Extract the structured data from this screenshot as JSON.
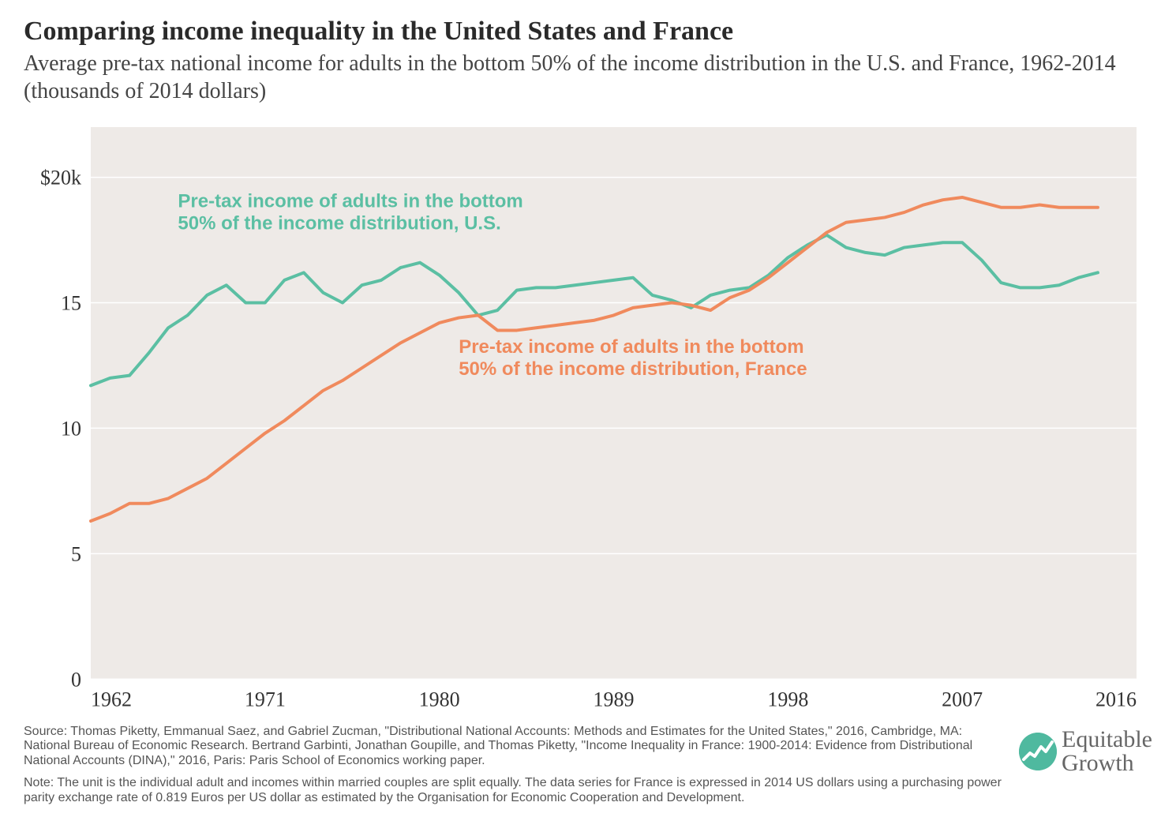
{
  "header": {
    "title": "Comparing income inequality in the United States and France",
    "subtitle": "Average pre-tax national income for adults in the bottom 50% of the income distribution in the U.S. and France, 1962-2014 (thousands of 2014 dollars)"
  },
  "chart": {
    "type": "line",
    "background_color": "#eeeae7",
    "page_background": "#ffffff",
    "grid_color": "#ffffff",
    "grid_line_width": 1.5,
    "xlim": [
      1962,
      2016
    ],
    "ylim": [
      0,
      22
    ],
    "xticks": [
      1962,
      1971,
      1980,
      1989,
      1998,
      2007,
      2016
    ],
    "yticks": [
      0,
      5,
      10,
      15,
      20
    ],
    "ytick_labels": [
      "0",
      "5",
      "10",
      "15",
      "$20k"
    ],
    "axis_font_size": 26,
    "axis_font_color": "#333333",
    "line_width": 4,
    "series": [
      {
        "id": "us",
        "label_line1": "Pre-tax income of adults in the bottom",
        "label_line2": "50% of the income distribution, U.S.",
        "color": "#5bbfa3",
        "label_x": 1966.5,
        "label_y_top": 18.8,
        "data": [
          [
            1962,
            11.7
          ],
          [
            1963,
            12.0
          ],
          [
            1964,
            12.1
          ],
          [
            1965,
            13.0
          ],
          [
            1966,
            14.0
          ],
          [
            1967,
            14.5
          ],
          [
            1968,
            15.3
          ],
          [
            1969,
            15.7
          ],
          [
            1970,
            15.0
          ],
          [
            1971,
            15.0
          ],
          [
            1972,
            15.9
          ],
          [
            1973,
            16.2
          ],
          [
            1974,
            15.4
          ],
          [
            1975,
            15.0
          ],
          [
            1976,
            15.7
          ],
          [
            1977,
            15.9
          ],
          [
            1978,
            16.4
          ],
          [
            1979,
            16.6
          ],
          [
            1980,
            16.1
          ],
          [
            1981,
            15.4
          ],
          [
            1982,
            14.5
          ],
          [
            1983,
            14.7
          ],
          [
            1984,
            15.5
          ],
          [
            1985,
            15.6
          ],
          [
            1986,
            15.6
          ],
          [
            1987,
            15.7
          ],
          [
            1988,
            15.8
          ],
          [
            1989,
            15.9
          ],
          [
            1990,
            16.0
          ],
          [
            1991,
            15.3
          ],
          [
            1992,
            15.1
          ],
          [
            1993,
            14.8
          ],
          [
            1994,
            15.3
          ],
          [
            1995,
            15.5
          ],
          [
            1996,
            15.6
          ],
          [
            1997,
            16.1
          ],
          [
            1998,
            16.8
          ],
          [
            1999,
            17.3
          ],
          [
            2000,
            17.7
          ],
          [
            2001,
            17.2
          ],
          [
            2002,
            17.0
          ],
          [
            2003,
            16.9
          ],
          [
            2004,
            17.2
          ],
          [
            2005,
            17.3
          ],
          [
            2006,
            17.4
          ],
          [
            2007,
            17.4
          ],
          [
            2008,
            16.7
          ],
          [
            2009,
            15.8
          ],
          [
            2010,
            15.6
          ],
          [
            2011,
            15.6
          ],
          [
            2012,
            15.7
          ],
          [
            2013,
            16.0
          ],
          [
            2014,
            16.2
          ]
        ]
      },
      {
        "id": "france",
        "label_line1": "Pre-tax income of adults in the bottom",
        "label_line2": "50% of the income distribution, France",
        "color": "#f08a5d",
        "label_x": 1981,
        "label_y_top": 13,
        "data": [
          [
            1962,
            6.3
          ],
          [
            1963,
            6.6
          ],
          [
            1964,
            7.0
          ],
          [
            1965,
            7.0
          ],
          [
            1966,
            7.2
          ],
          [
            1967,
            7.6
          ],
          [
            1968,
            8.0
          ],
          [
            1969,
            8.6
          ],
          [
            1970,
            9.2
          ],
          [
            1971,
            9.8
          ],
          [
            1972,
            10.3
          ],
          [
            1973,
            10.9
          ],
          [
            1974,
            11.5
          ],
          [
            1975,
            11.9
          ],
          [
            1976,
            12.4
          ],
          [
            1977,
            12.9
          ],
          [
            1978,
            13.4
          ],
          [
            1979,
            13.8
          ],
          [
            1980,
            14.2
          ],
          [
            1981,
            14.4
          ],
          [
            1982,
            14.5
          ],
          [
            1983,
            13.9
          ],
          [
            1984,
            13.9
          ],
          [
            1985,
            14.0
          ],
          [
            1986,
            14.1
          ],
          [
            1987,
            14.2
          ],
          [
            1988,
            14.3
          ],
          [
            1989,
            14.5
          ],
          [
            1990,
            14.8
          ],
          [
            1991,
            14.9
          ],
          [
            1992,
            15.0
          ],
          [
            1993,
            14.9
          ],
          [
            1994,
            14.7
          ],
          [
            1995,
            15.2
          ],
          [
            1996,
            15.5
          ],
          [
            1997,
            16.0
          ],
          [
            1998,
            16.6
          ],
          [
            1999,
            17.2
          ],
          [
            2000,
            17.8
          ],
          [
            2001,
            18.2
          ],
          [
            2002,
            18.3
          ],
          [
            2003,
            18.4
          ],
          [
            2004,
            18.6
          ],
          [
            2005,
            18.9
          ],
          [
            2006,
            19.1
          ],
          [
            2007,
            19.2
          ],
          [
            2008,
            19.0
          ],
          [
            2009,
            18.8
          ],
          [
            2010,
            18.8
          ],
          [
            2011,
            18.9
          ],
          [
            2012,
            18.8
          ],
          [
            2013,
            18.8
          ],
          [
            2014,
            18.8
          ]
        ]
      }
    ]
  },
  "footer": {
    "source": "Source: Thomas Piketty, Emmanual Saez, and Gabriel Zucman, \"Distributional National Accounts: Methods and Estimates for the United States,\" 2016, Cambridge, MA: National Bureau of Economic Research. Bertrand Garbinti, Jonathan Goupille, and Thomas Piketty, \"Income Inequality in France: 1900-2014: Evidence from Distributional National Accounts (DINA),\" 2016, Paris: Paris School of Economics working paper.",
    "note": "Note: The unit is the individual adult and incomes within married couples are split equally. The data series for France is expressed in 2014 US dollars using a purchasing power parity exchange rate of 0.819 Euros per US dollar as estimated by the Organisation for Economic Cooperation and Development."
  },
  "logo": {
    "line1": "Equitable",
    "line2": "Growth",
    "icon_color": "#4fb99f"
  }
}
